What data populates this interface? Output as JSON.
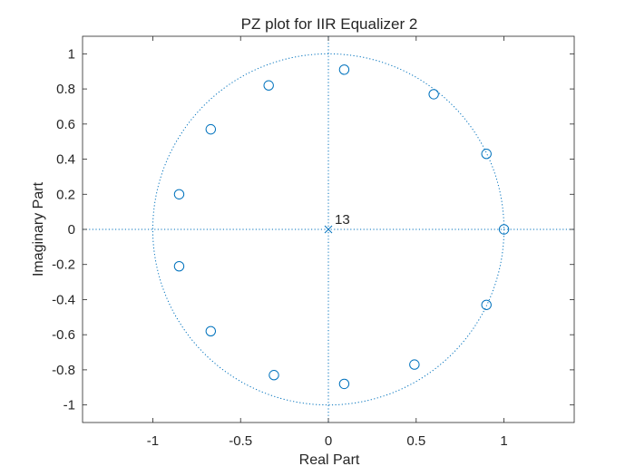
{
  "chart_data": {
    "type": "scatter",
    "title": "PZ plot for IIR Equalizer 2",
    "xlabel": "Real Part",
    "ylabel": "Imaginary Part",
    "xlim": [
      -1.4,
      1.4
    ],
    "ylim": [
      -1.1,
      1.1
    ],
    "xticks": [
      -1,
      -0.5,
      0,
      0.5,
      1
    ],
    "xtick_labels": [
      "-1",
      "-0.5",
      "0",
      "0.5",
      "1"
    ],
    "yticks": [
      1,
      0.8,
      0.6,
      0.4,
      0.2,
      0,
      -0.2,
      -0.4,
      -0.6,
      -0.8,
      -1
    ],
    "ytick_labels": [
      "1",
      "0.8",
      "0.6",
      "0.4",
      "0.2",
      "0",
      "-0.2",
      "-0.4",
      "-0.6",
      "-0.8",
      "-1"
    ],
    "grid": false,
    "unit_circle": true,
    "series_color": "#0072BD",
    "zeros": {
      "marker": "circle",
      "points": [
        [
          1.0,
          0.0
        ],
        [
          0.9,
          0.43
        ],
        [
          0.6,
          0.77
        ],
        [
          0.09,
          0.91
        ],
        [
          -0.34,
          0.82
        ],
        [
          -0.67,
          0.57
        ],
        [
          -0.85,
          0.2
        ],
        [
          -0.85,
          -0.21
        ],
        [
          -0.67,
          -0.58
        ],
        [
          -0.31,
          -0.83
        ],
        [
          0.09,
          -0.88
        ],
        [
          0.49,
          -0.77
        ],
        [
          0.9,
          -0.43
        ]
      ]
    },
    "poles": {
      "marker": "x",
      "points": [
        [
          0,
          0
        ]
      ],
      "multiplicity_label": "13"
    }
  }
}
